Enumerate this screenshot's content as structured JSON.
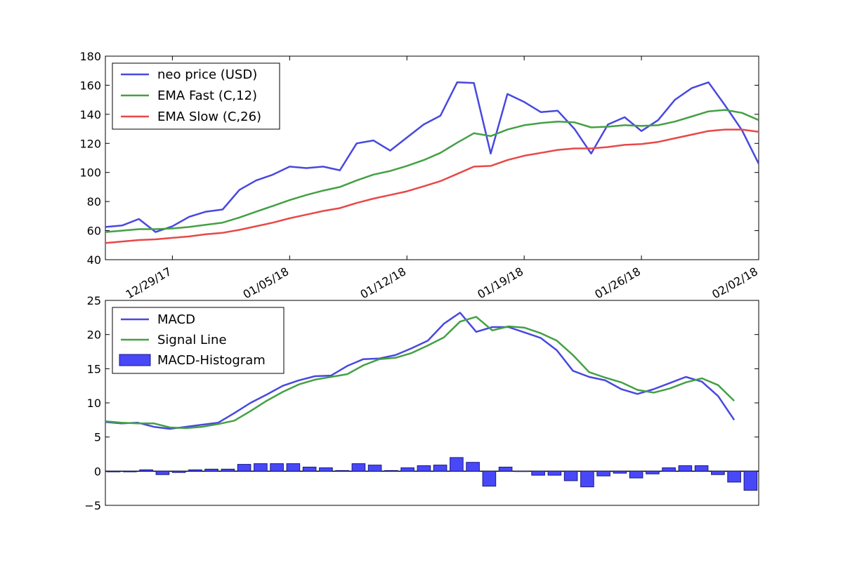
{
  "chart_data": [
    {
      "type": "line",
      "dates": [
        "12/25/17",
        "12/26/17",
        "12/27/17",
        "12/28/17",
        "12/29/17",
        "12/30/17",
        "12/31/17",
        "01/01/18",
        "01/02/18",
        "01/03/18",
        "01/04/18",
        "01/05/18",
        "01/06/18",
        "01/07/18",
        "01/08/18",
        "01/09/18",
        "01/10/18",
        "01/11/18",
        "01/12/18",
        "01/13/18",
        "01/14/18",
        "01/15/18",
        "01/16/18",
        "01/17/18",
        "01/18/18",
        "01/19/18",
        "01/20/18",
        "01/21/18",
        "01/22/18",
        "01/23/18",
        "01/24/18",
        "01/25/18",
        "01/26/18",
        "01/27/18",
        "01/28/18",
        "01/29/18",
        "01/30/18",
        "01/31/18",
        "02/01/18",
        "02/02/18"
      ],
      "series": [
        {
          "name": "neo price (USD)",
          "color": "#4848e0",
          "values": [
            62.5,
            63.5,
            68,
            59,
            63,
            69.5,
            73,
            74.5,
            88,
            94.5,
            98.5,
            104,
            103,
            104,
            101.5,
            120,
            122,
            115,
            124,
            133,
            139,
            162,
            161.5,
            113,
            154,
            148.5,
            141.5,
            142.5,
            130,
            113,
            133,
            138,
            128.5,
            136,
            150,
            158,
            162,
            146,
            129,
            106
          ]
        },
        {
          "name": "EMA Fast (C,12)",
          "color": "#44a044",
          "values": [
            59,
            60,
            61,
            61,
            61.5,
            62.5,
            64,
            65.5,
            69,
            73,
            77,
            81,
            84.5,
            87.5,
            90,
            94.5,
            98.5,
            101,
            104.5,
            108.5,
            113.5,
            120.5,
            127,
            125,
            129.5,
            132.5,
            134,
            135,
            134.5,
            131,
            131.5,
            132.5,
            132,
            132.5,
            135,
            138.5,
            142,
            143,
            141,
            136
          ]
        },
        {
          "name": "EMA Slow (C,26)",
          "color": "#e84848",
          "values": [
            51.5,
            52.5,
            53.5,
            54,
            55,
            56,
            57.5,
            58.5,
            60.5,
            63,
            65.5,
            68.5,
            71,
            73.5,
            75.5,
            79,
            82,
            84.5,
            87,
            90.5,
            94,
            99,
            104,
            104.5,
            108.5,
            111.5,
            113.5,
            115.5,
            116.5,
            116.5,
            117.5,
            119,
            119.5,
            121,
            123.5,
            126,
            128.5,
            129.5,
            129.5,
            128
          ]
        }
      ],
      "ylim": [
        40,
        180
      ],
      "yticks": [
        40,
        60,
        80,
        100,
        120,
        140,
        160,
        180
      ],
      "xticks": [
        "12/29/17",
        "01/05/18",
        "01/12/18",
        "01/19/18",
        "01/26/18",
        "02/02/18"
      ],
      "legend": "upper-left"
    },
    {
      "type": "line",
      "dates": [
        "12/25/17",
        "12/26/17",
        "12/27/17",
        "12/28/17",
        "12/29/17",
        "12/30/17",
        "12/31/17",
        "01/01/18",
        "01/02/18",
        "01/03/18",
        "01/04/18",
        "01/05/18",
        "01/06/18",
        "01/07/18",
        "01/08/18",
        "01/09/18",
        "01/10/18",
        "01/11/18",
        "01/12/18",
        "01/13/18",
        "01/14/18",
        "01/15/18",
        "01/16/18",
        "01/17/18",
        "01/18/18",
        "01/19/18",
        "01/20/18",
        "01/21/18",
        "01/22/18",
        "01/23/18",
        "01/24/18",
        "01/25/18",
        "01/26/18",
        "01/27/18",
        "01/28/18",
        "01/29/18",
        "01/30/18",
        "01/31/18",
        "02/01/18",
        "02/02/18"
      ],
      "series": [
        {
          "name": "MACD",
          "color": "#4848e0",
          "values": [
            7.2,
            7.0,
            7.1,
            6.5,
            6.2,
            6.5,
            6.8,
            7.1,
            8.5,
            10,
            11.2,
            12.5,
            13.3,
            13.9,
            14,
            15.4,
            16.4,
            16.5,
            17,
            18,
            19.1,
            21.6,
            23.2,
            20.4,
            21.1,
            21.1,
            20.3,
            19.5,
            17.7,
            14.7,
            13.8,
            13.3,
            12,
            11.3,
            12,
            12.9,
            13.8,
            13.1,
            11,
            7.5
          ]
        },
        {
          "name": "Signal Line",
          "color": "#44a044",
          "values": [
            7.3,
            7.1,
            7.0,
            7.0,
            6.4,
            6.3,
            6.5,
            6.9,
            7.4,
            8.8,
            10.3,
            11.6,
            12.7,
            13.4,
            13.8,
            14.2,
            15.5,
            16.4,
            16.6,
            17.3,
            18.4,
            19.6,
            21.9,
            22.6,
            20.6,
            21.2,
            21,
            20.2,
            19.1,
            17,
            14.5,
            13.7,
            13,
            11.9,
            11.5,
            12.1,
            13,
            13.6,
            12.6,
            10.3
          ]
        },
        {
          "name": "MACD-Histogram",
          "color": "#4848f8",
          "type": "bar",
          "values": [
            -0.1,
            -0.1,
            0.2,
            -0.5,
            -0.2,
            0.2,
            0.3,
            0.3,
            1,
            1.1,
            1.1,
            1.1,
            0.6,
            0.5,
            0.1,
            1.1,
            0.9,
            0.1,
            0.5,
            0.8,
            0.9,
            2,
            1.3,
            -2.2,
            0.6,
            0,
            -0.6,
            -0.6,
            -1.4,
            -2.3,
            -0.7,
            -0.3,
            -1,
            -0.4,
            0.5,
            0.8,
            0.8,
            -0.5,
            -1.6,
            -2.8
          ]
        }
      ],
      "ylim": [
        -5,
        25
      ],
      "yticks": [
        -5,
        0,
        5,
        10,
        15,
        20,
        25
      ],
      "ytick_labels": [
        "−5",
        "0",
        "5",
        "10",
        "15",
        "20",
        "25"
      ],
      "legend": "upper-left"
    }
  ]
}
